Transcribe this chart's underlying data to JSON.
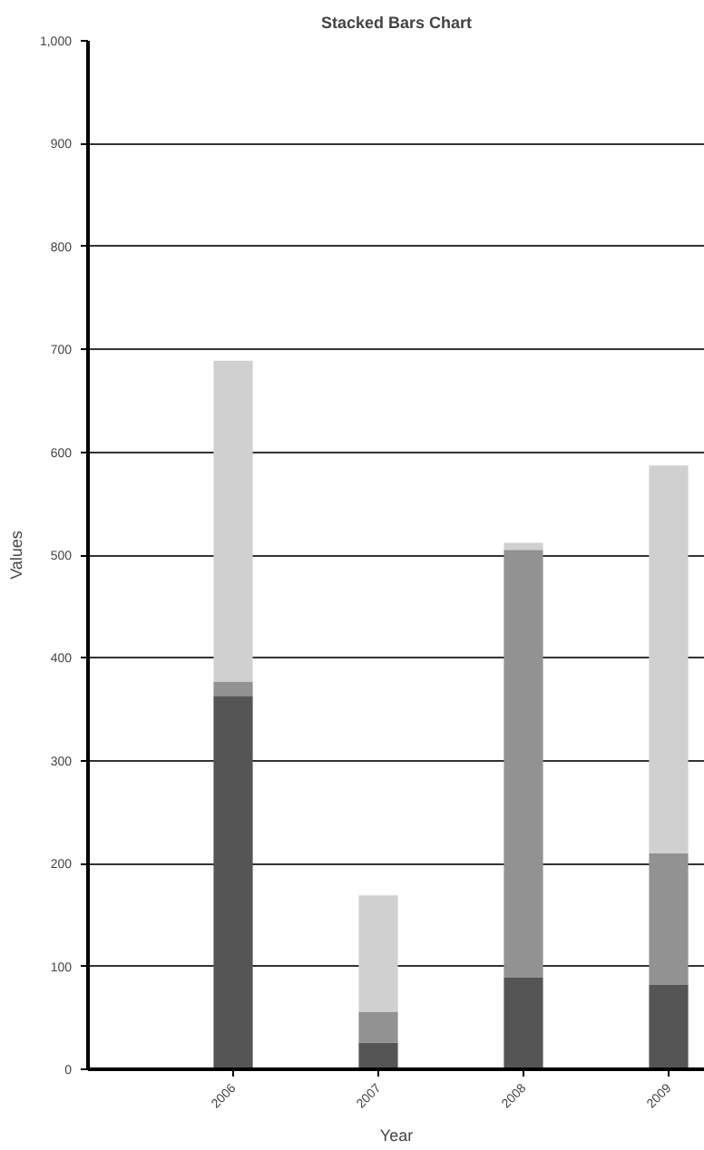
{
  "chart_data": {
    "type": "bar",
    "title": "Stacked Bars Chart",
    "xlabel": "Year",
    "ylabel": "Values",
    "x": [
      2006,
      2007,
      2008,
      2009
    ],
    "xlim": [
      2005,
      2009.25
    ],
    "xticks": [
      2006,
      2007,
      2008,
      2009
    ],
    "ylim": [
      0,
      1000
    ],
    "yticks": [
      0,
      100,
      200,
      300,
      400,
      500,
      600,
      700,
      800,
      900,
      {
        "value": 1000,
        "label": "1,000"
      }
    ],
    "stacked": true,
    "grid": "y",
    "series": [
      {
        "color": "#555555",
        "values": [
          363,
          26,
          89,
          82
        ]
      },
      {
        "color": "#929292",
        "values": [
          14,
          30,
          416,
          128
        ]
      },
      {
        "color": "#d0d0d0",
        "values": [
          312,
          113,
          7,
          377
        ]
      }
    ]
  }
}
